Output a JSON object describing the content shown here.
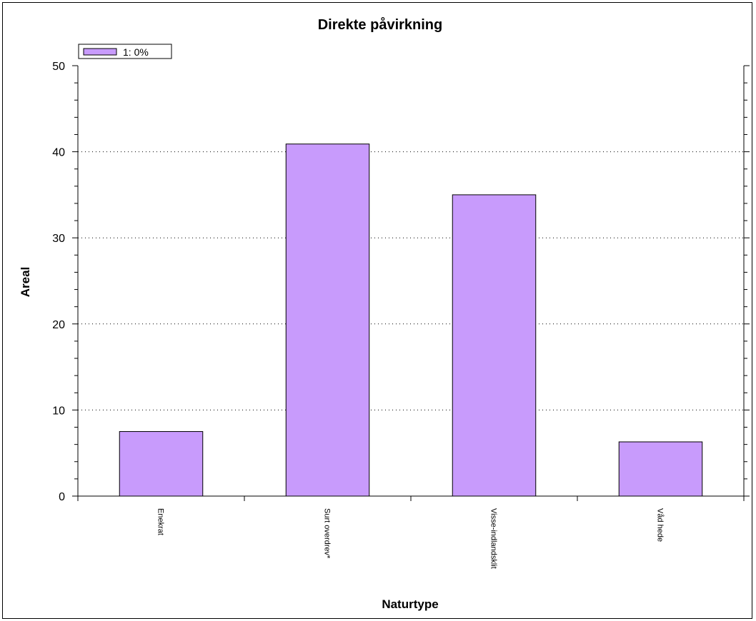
{
  "chart_data": {
    "type": "bar",
    "title": "Direkte påvirkning",
    "xlabel": "Naturtype",
    "ylabel": "Areal",
    "categories": [
      "Enekrat",
      "Surt overdrev*",
      "Visse-indlandsklit",
      "Våd hede"
    ],
    "series": [
      {
        "name": "1: 0%",
        "values": [
          7.5,
          40.9,
          35.0,
          6.3
        ],
        "color": "#c89bfc"
      }
    ],
    "ylim": [
      0,
      50
    ],
    "yticks": [
      0,
      10,
      20,
      30,
      40,
      50
    ],
    "grid": "horizontal-dotted",
    "legend": "top-left"
  }
}
